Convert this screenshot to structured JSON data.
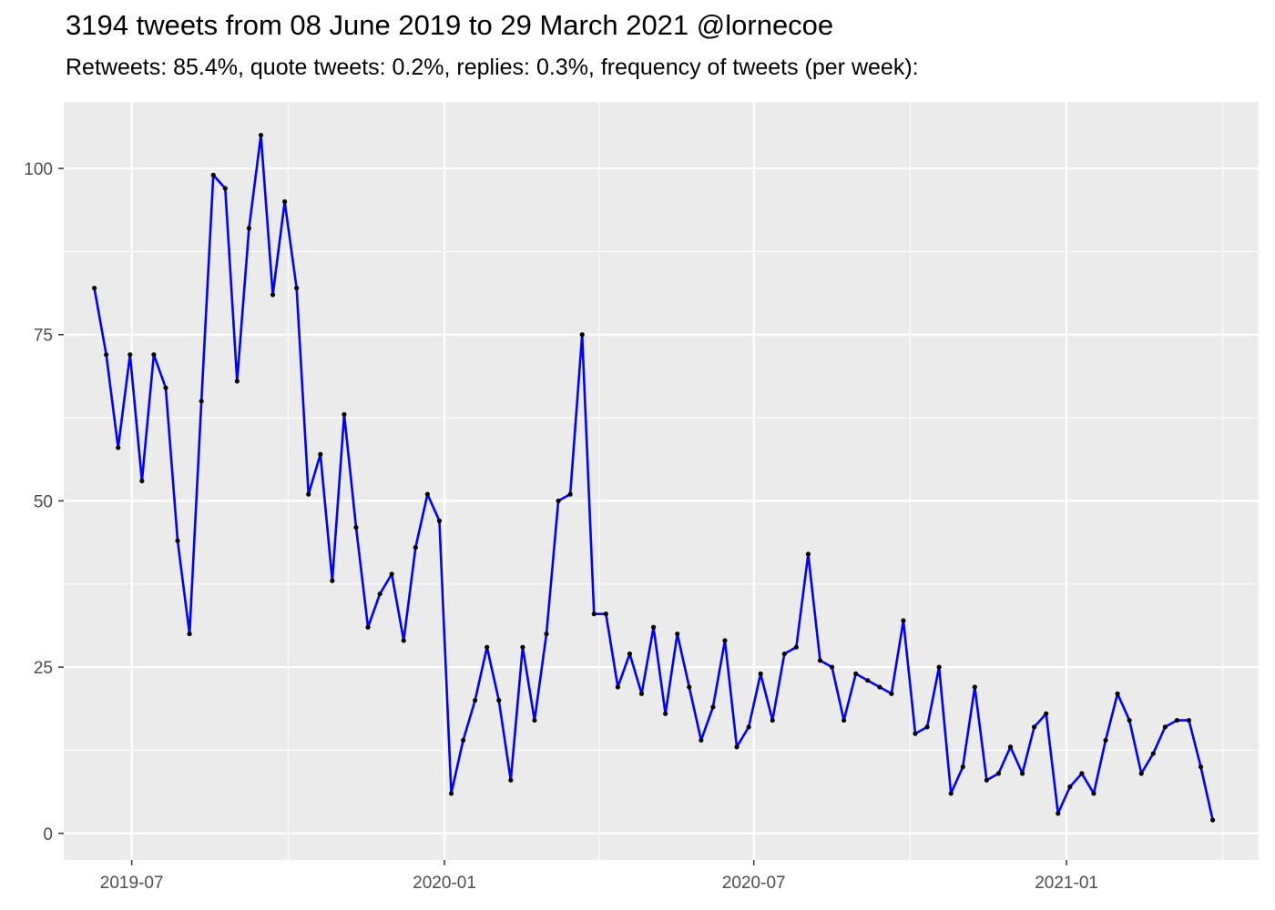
{
  "title": "3194 tweets from 08 June 2019 to 29 March 2021 @lornecoe",
  "subtitle": "Retweets: 85.4%, quote tweets: 0.2%, replies: 0.3%, frequency of tweets (per week):",
  "colors": {
    "panel": "#ebebeb",
    "grid": "#ffffff",
    "line": "#0000ff",
    "point": "#000000"
  },
  "chart_data": {
    "type": "line",
    "title": "3194 tweets from 08 June 2019 to 29 March 2021 @lornecoe",
    "xlabel": "",
    "ylabel": "",
    "ylim": [
      -4,
      110
    ],
    "xlim": [
      "2019-05-22",
      "2021-04-24"
    ],
    "y_ticks": [
      0,
      25,
      50,
      75,
      100
    ],
    "x_ticks": [
      "2019-07",
      "2020-01",
      "2020-07",
      "2021-01"
    ],
    "x_tick_dates": [
      "2019-07-01",
      "2020-01-01",
      "2020-07-01",
      "2021-01-01"
    ],
    "grid": true,
    "legend": "none",
    "series": [
      {
        "x": [
          "2019-06-09",
          "2019-06-16",
          "2019-06-23",
          "2019-06-30",
          "2019-07-07",
          "2019-07-14",
          "2019-07-21",
          "2019-07-28",
          "2019-08-04",
          "2019-08-11",
          "2019-08-18",
          "2019-08-25",
          "2019-09-01",
          "2019-09-08",
          "2019-09-15",
          "2019-09-22",
          "2019-09-29",
          "2019-10-06",
          "2019-10-13",
          "2019-10-20",
          "2019-10-27",
          "2019-11-03",
          "2019-11-10",
          "2019-11-17",
          "2019-11-24",
          "2019-12-01",
          "2019-12-08",
          "2019-12-15",
          "2019-12-22",
          "2019-12-29",
          "2020-01-05",
          "2020-01-12",
          "2020-01-19",
          "2020-01-26",
          "2020-02-02",
          "2020-02-09",
          "2020-02-16",
          "2020-02-23",
          "2020-03-01",
          "2020-03-08",
          "2020-03-15",
          "2020-03-22",
          "2020-03-29",
          "2020-04-05",
          "2020-04-12",
          "2020-04-19",
          "2020-04-26",
          "2020-05-03",
          "2020-05-10",
          "2020-05-17",
          "2020-05-24",
          "2020-05-31",
          "2020-06-07",
          "2020-06-14",
          "2020-06-21",
          "2020-06-28",
          "2020-07-05",
          "2020-07-12",
          "2020-07-19",
          "2020-07-26",
          "2020-08-02",
          "2020-08-09",
          "2020-08-16",
          "2020-08-23",
          "2020-08-30",
          "2020-09-06",
          "2020-09-13",
          "2020-09-20",
          "2020-09-27",
          "2020-10-04",
          "2020-10-11",
          "2020-10-18",
          "2020-10-25",
          "2020-11-01",
          "2020-11-08",
          "2020-11-15",
          "2020-11-22",
          "2020-11-29",
          "2020-12-06",
          "2020-12-13",
          "2020-12-20",
          "2020-12-27",
          "2021-01-03",
          "2021-01-10",
          "2021-01-17",
          "2021-01-24",
          "2021-01-31",
          "2021-02-07",
          "2021-02-14",
          "2021-02-21",
          "2021-02-28",
          "2021-03-07",
          "2021-03-14",
          "2021-03-21",
          "2021-03-28"
        ],
        "values": [
          82,
          72,
          58,
          72,
          53,
          72,
          67,
          44,
          30,
          65,
          99,
          97,
          68,
          91,
          105,
          81,
          95,
          82,
          51,
          57,
          38,
          63,
          46,
          31,
          36,
          39,
          29,
          43,
          51,
          47,
          6,
          14,
          20,
          28,
          20,
          8,
          28,
          17,
          30,
          50,
          51,
          75,
          33,
          33,
          22,
          27,
          21,
          31,
          18,
          30,
          22,
          14,
          19,
          29,
          13,
          16,
          24,
          17,
          27,
          28,
          42,
          26,
          25,
          17,
          24,
          23,
          22,
          21,
          32,
          15,
          16,
          25,
          6,
          10,
          22,
          8,
          9,
          13,
          9,
          16,
          18,
          3,
          7,
          9,
          6,
          14,
          21,
          17,
          9,
          12,
          16,
          17,
          17,
          10,
          2
        ]
      }
    ]
  }
}
